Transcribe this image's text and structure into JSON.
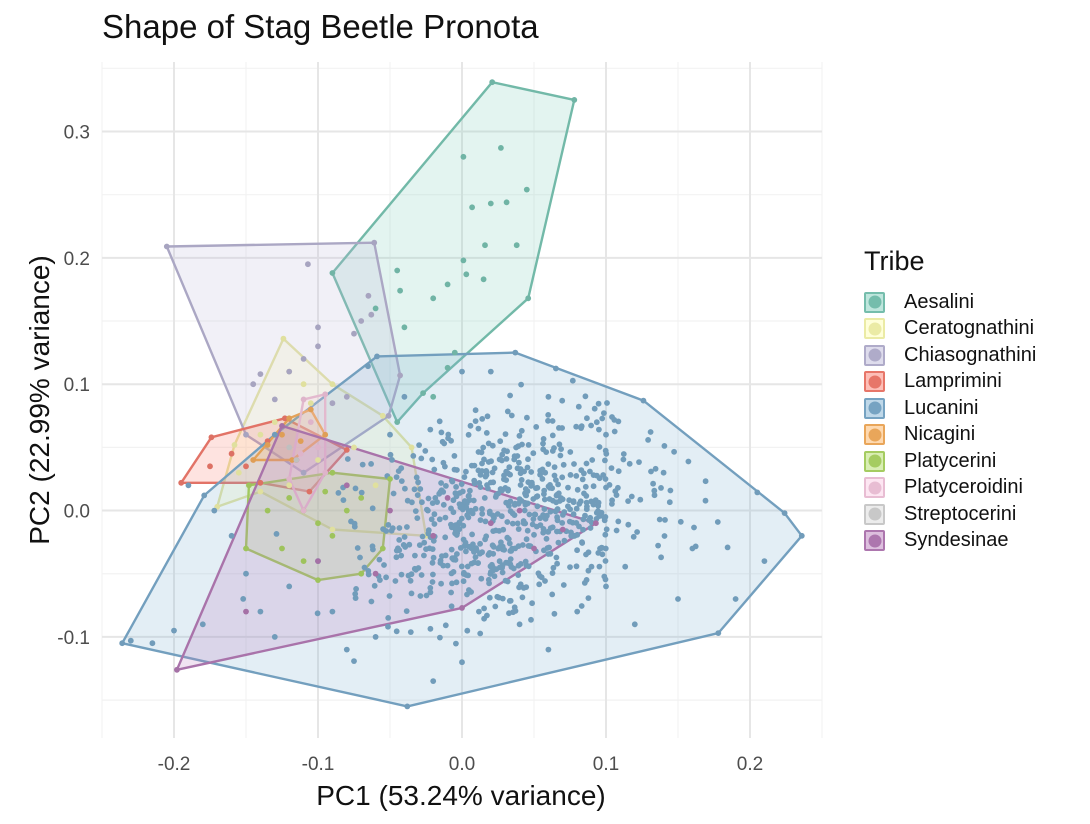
{
  "chart_data": {
    "type": "scatter",
    "title": "Shape of Stag Beetle Pronota",
    "xlabel": "PC1 (53.24% variance)",
    "ylabel": "PC2 (22.99% variance)",
    "xlim": [
      -0.25,
      0.25
    ],
    "ylim": [
      -0.18,
      0.355
    ],
    "x_ticks": [
      -0.2,
      -0.1,
      0.0,
      0.1,
      0.2
    ],
    "x_tick_labels": [
      "-0.2",
      "-0.1",
      "0.0",
      "0.1",
      "0.2"
    ],
    "y_ticks": [
      -0.1,
      0.0,
      0.1,
      0.2,
      0.3
    ],
    "y_tick_labels": [
      "-0.1",
      "0.0",
      "0.1",
      "0.2",
      "0.3"
    ],
    "grid": true,
    "hulls": true,
    "legend": {
      "title": "Tribe",
      "position": "right"
    },
    "series": [
      {
        "name": "Aesalini",
        "color": "#7FCDBB",
        "hull": [
          [
            0.021,
            0.339
          ],
          [
            0.078,
            0.325
          ],
          [
            0.046,
            0.168
          ],
          [
            -0.027,
            0.093
          ],
          [
            -0.045,
            0.07
          ],
          [
            -0.09,
            0.188
          ]
        ],
        "points": [
          [
            0.021,
            0.339
          ],
          [
            0.078,
            0.325
          ],
          [
            0.046,
            0.168
          ],
          [
            -0.027,
            0.093
          ],
          [
            -0.045,
            0.07
          ],
          [
            -0.09,
            0.188
          ],
          [
            0.027,
            0.287
          ],
          [
            0.001,
            0.28
          ],
          [
            0.045,
            0.254
          ],
          [
            0.031,
            0.244
          ],
          [
            0.02,
            0.243
          ],
          [
            0.007,
            0.24
          ],
          [
            0.016,
            0.21
          ],
          [
            0.038,
            0.21
          ],
          [
            0.001,
            0.198
          ],
          [
            -0.045,
            0.19
          ],
          [
            0.003,
            0.187
          ],
          [
            -0.01,
            0.179
          ],
          [
            0.015,
            0.183
          ],
          [
            -0.06,
            0.16
          ],
          [
            -0.02,
            0.168
          ],
          [
            -0.043,
            0.174
          ],
          [
            -0.04,
            0.145
          ],
          [
            -0.005,
            0.125
          ],
          [
            -0.01,
            0.113
          ],
          [
            -0.02,
            0.09
          ]
        ]
      },
      {
        "name": "Ceratognathini",
        "color": "#FFFFB3",
        "hull": [
          [
            -0.124,
            0.136
          ],
          [
            -0.09,
            0.1
          ],
          [
            -0.055,
            0.075
          ],
          [
            -0.035,
            0.05
          ],
          [
            -0.025,
            -0.02
          ],
          [
            -0.09,
            -0.015
          ],
          [
            -0.14,
            0.015
          ],
          [
            -0.17,
            0.003
          ],
          [
            -0.158,
            0.052
          ]
        ],
        "points": [
          [
            -0.124,
            0.136
          ],
          [
            -0.09,
            0.1
          ],
          [
            -0.055,
            0.075
          ],
          [
            -0.035,
            0.05
          ],
          [
            -0.025,
            -0.02
          ],
          [
            -0.09,
            -0.015
          ],
          [
            -0.14,
            0.015
          ],
          [
            -0.17,
            0.003
          ],
          [
            -0.158,
            0.052
          ],
          [
            -0.11,
            0.1
          ],
          [
            -0.12,
            0.11
          ],
          [
            -0.105,
            0.085
          ],
          [
            -0.13,
            0.07
          ],
          [
            -0.075,
            0.05
          ],
          [
            -0.1,
            0.04
          ],
          [
            -0.12,
            0.02
          ],
          [
            -0.06,
            0.02
          ],
          [
            -0.14,
            0.06
          ],
          [
            -0.155,
            0.03
          ]
        ]
      },
      {
        "name": "Chiasognathini",
        "color": "#BEBADA",
        "hull": [
          [
            -0.205,
            0.209
          ],
          [
            -0.061,
            0.212
          ],
          [
            -0.043,
            0.107
          ],
          [
            -0.051,
            0.075
          ],
          [
            -0.11,
            0.03
          ],
          [
            -0.15,
            0.06
          ]
        ],
        "points": [
          [
            -0.205,
            0.209
          ],
          [
            -0.061,
            0.212
          ],
          [
            -0.043,
            0.107
          ],
          [
            -0.051,
            0.075
          ],
          [
            -0.11,
            0.03
          ],
          [
            -0.15,
            0.06
          ],
          [
            -0.107,
            0.195
          ],
          [
            -0.065,
            0.17
          ],
          [
            -0.063,
            0.155
          ],
          [
            -0.07,
            0.15
          ],
          [
            -0.075,
            0.14
          ],
          [
            -0.1,
            0.145
          ],
          [
            -0.1,
            0.13
          ],
          [
            -0.11,
            0.12
          ],
          [
            -0.12,
            0.11
          ],
          [
            -0.14,
            0.108
          ],
          [
            -0.145,
            0.1
          ],
          [
            -0.13,
            0.088
          ],
          [
            -0.09,
            0.085
          ],
          [
            -0.08,
            0.09
          ]
        ]
      },
      {
        "name": "Lamprimini",
        "color": "#FB8072",
        "hull": [
          [
            -0.123,
            0.073
          ],
          [
            -0.08,
            0.048
          ],
          [
            -0.106,
            0.015
          ],
          [
            -0.14,
            0.022
          ],
          [
            -0.195,
            0.022
          ],
          [
            -0.174,
            0.058
          ]
        ],
        "points": [
          [
            -0.123,
            0.073
          ],
          [
            -0.08,
            0.048
          ],
          [
            -0.106,
            0.015
          ],
          [
            -0.14,
            0.022
          ],
          [
            -0.195,
            0.022
          ],
          [
            -0.174,
            0.058
          ],
          [
            -0.16,
            0.045
          ],
          [
            -0.15,
            0.035
          ],
          [
            -0.175,
            0.035
          ],
          [
            -0.135,
            0.055
          ],
          [
            -0.115,
            0.04
          ]
        ]
      },
      {
        "name": "Lucanini",
        "color": "#80B1D3",
        "hull": [
          [
            -0.059,
            0.122
          ],
          [
            0.037,
            0.125
          ],
          [
            0.126,
            0.087
          ],
          [
            0.224,
            -0.002
          ],
          [
            0.236,
            -0.02
          ],
          [
            0.178,
            -0.097
          ],
          [
            -0.038,
            -0.155
          ],
          [
            -0.236,
            -0.105
          ],
          [
            -0.179,
            0.012
          ],
          [
            -0.13,
            0.06
          ]
        ],
        "gen": {
          "n": 720,
          "cx": 0.035,
          "cy": 0.0,
          "sx": 0.052,
          "sy": 0.042,
          "rho": 0.25,
          "seed": 7,
          "extra": [
            [
              -0.23,
              -0.103
            ],
            [
              -0.215,
              -0.105
            ],
            [
              -0.2,
              -0.095
            ],
            [
              -0.18,
              -0.09
            ],
            [
              -0.19,
              0.02
            ],
            [
              -0.172,
              0.0
            ],
            [
              -0.16,
              -0.02
            ],
            [
              -0.15,
              -0.05
            ],
            [
              -0.14,
              -0.08
            ],
            [
              -0.13,
              -0.1
            ],
            [
              -0.12,
              -0.06
            ],
            [
              -0.1,
              -0.04
            ],
            [
              -0.09,
              -0.08
            ],
            [
              -0.08,
              -0.11
            ],
            [
              -0.06,
              -0.1
            ],
            [
              -0.05,
              0.06
            ],
            [
              -0.04,
              0.09
            ],
            [
              0.0,
              0.11
            ],
            [
              0.02,
              0.11
            ],
            [
              0.06,
              0.09
            ],
            [
              0.1,
              0.06
            ],
            [
              0.14,
              0.03
            ],
            [
              0.16,
              -0.03
            ],
            [
              0.19,
              -0.07
            ],
            [
              0.21,
              -0.04
            ],
            [
              0.15,
              -0.07
            ],
            [
              0.12,
              -0.09
            ],
            [
              0.1,
              -0.06
            ],
            [
              0.06,
              -0.11
            ],
            [
              0.0,
              -0.12
            ],
            [
              -0.02,
              -0.135
            ],
            [
              0.04,
              -0.09
            ],
            [
              0.08,
              -0.08
            ]
          ]
        }
      },
      {
        "name": "Nicagini",
        "color": "#FDB462",
        "hull": [
          [
            -0.12,
            0.073
          ],
          [
            -0.105,
            0.08
          ],
          [
            -0.095,
            0.06
          ],
          [
            -0.118,
            0.04
          ],
          [
            -0.145,
            0.04
          ]
        ],
        "points": [
          [
            -0.12,
            0.073
          ],
          [
            -0.105,
            0.08
          ],
          [
            -0.095,
            0.06
          ],
          [
            -0.118,
            0.04
          ],
          [
            -0.145,
            0.04
          ],
          [
            -0.125,
            0.06
          ],
          [
            -0.135,
            0.052
          ],
          [
            -0.112,
            0.055
          ]
        ]
      },
      {
        "name": "Platycerini",
        "color": "#B3DE69",
        "hull": [
          [
            -0.09,
            0.03
          ],
          [
            -0.05,
            0.025
          ],
          [
            -0.055,
            -0.03
          ],
          [
            -0.07,
            -0.05
          ],
          [
            -0.1,
            -0.055
          ],
          [
            -0.15,
            -0.03
          ],
          [
            -0.148,
            0.02
          ]
        ],
        "points": [
          [
            -0.09,
            0.03
          ],
          [
            -0.05,
            0.025
          ],
          [
            -0.055,
            -0.03
          ],
          [
            -0.07,
            -0.05
          ],
          [
            -0.1,
            -0.055
          ],
          [
            -0.15,
            -0.03
          ],
          [
            -0.148,
            0.02
          ],
          [
            -0.12,
            0.01
          ],
          [
            -0.11,
            0.0
          ],
          [
            -0.1,
            -0.01
          ],
          [
            -0.09,
            -0.02
          ],
          [
            -0.08,
            0.0
          ],
          [
            -0.125,
            -0.03
          ],
          [
            -0.135,
            0.0
          ],
          [
            -0.07,
            0.01
          ],
          [
            -0.11,
            -0.04
          ],
          [
            -0.095,
            0.015
          ]
        ]
      },
      {
        "name": "Platyceroidini",
        "color": "#FCCDE5",
        "hull": [
          [
            -0.11,
            0.088
          ],
          [
            -0.095,
            0.092
          ],
          [
            -0.095,
            0.03
          ],
          [
            -0.11,
            0.0
          ],
          [
            -0.12,
            0.025
          ]
        ],
        "points": [
          [
            -0.11,
            0.088
          ],
          [
            -0.095,
            0.092
          ],
          [
            -0.095,
            0.03
          ],
          [
            -0.11,
            0.0
          ],
          [
            -0.12,
            0.025
          ],
          [
            -0.105,
            0.07
          ],
          [
            -0.1,
            0.05
          ],
          [
            -0.112,
            0.045
          ]
        ]
      },
      {
        "name": "Streptocerini",
        "color": "#D9D9D9",
        "hull": [],
        "points": [
          [
            -0.12,
            0.05
          ],
          [
            -0.115,
            0.04
          ]
        ]
      },
      {
        "name": "Syndesinae",
        "color": "#BC80BD",
        "hull": [
          [
            -0.125,
            0.067
          ],
          [
            0.093,
            -0.01
          ],
          [
            0.0,
            -0.077
          ],
          [
            -0.198,
            -0.126
          ]
        ],
        "points": [
          [
            -0.125,
            0.067
          ],
          [
            0.093,
            -0.01
          ],
          [
            0.0,
            -0.077
          ],
          [
            -0.198,
            -0.126
          ],
          [
            -0.08,
            0.02
          ],
          [
            -0.05,
            0.0
          ],
          [
            -0.02,
            -0.02
          ],
          [
            0.02,
            -0.01
          ],
          [
            0.04,
            0.0
          ],
          [
            -0.1,
            -0.04
          ],
          [
            -0.15,
            -0.08
          ],
          [
            -0.06,
            -0.05
          ],
          [
            0.05,
            -0.03
          ],
          [
            0.07,
            -0.015
          ],
          [
            -0.01,
            0.01
          ]
        ]
      }
    ]
  }
}
